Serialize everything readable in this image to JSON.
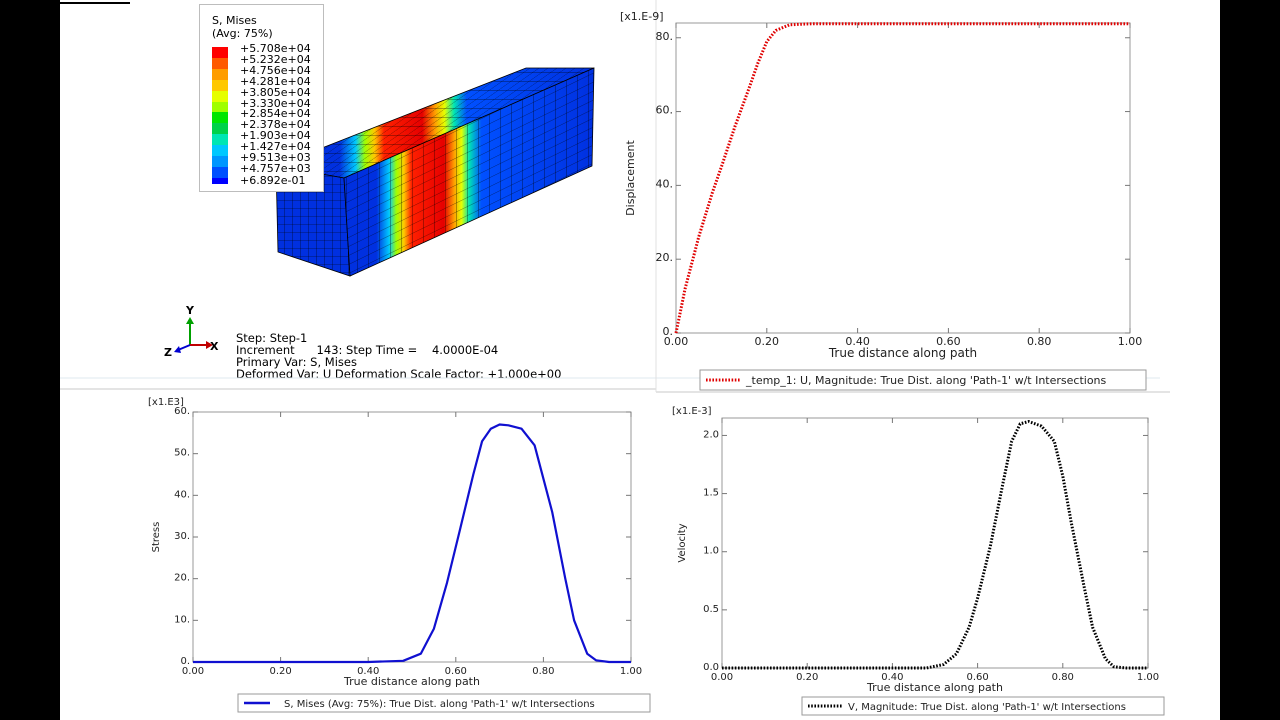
{
  "model": {
    "legend": {
      "title": "S, Mises",
      "subtitle": "(Avg: 75%)",
      "levels": [
        "+5.708e+04",
        "+5.232e+04",
        "+4.756e+04",
        "+4.281e+04",
        "+3.805e+04",
        "+3.330e+04",
        "+2.854e+04",
        "+2.378e+04",
        "+1.903e+04",
        "+1.427e+04",
        "+9.513e+03",
        "+4.757e+03",
        "+6.892e-01"
      ],
      "colors": [
        "#ff0000",
        "#ff5a00",
        "#ff9d00",
        "#ffc800",
        "#e6ff00",
        "#a0ff00",
        "#00e600",
        "#00d24a",
        "#00e6b4",
        "#00c8ff",
        "#0096ff",
        "#0050ff",
        "#0000ff"
      ]
    },
    "triad": {
      "y": "Y",
      "x": "X",
      "z": "Z"
    },
    "info": {
      "line1": "Step: Step-1",
      "line2": "Increment      143: Step Time =    4.0000E-04",
      "line3": "Primary Var: S, Mises",
      "line4": "Deformed Var: U   Deformation Scale Factor: +1.000e+00"
    }
  },
  "chart_data": [
    {
      "name": "displacement",
      "type": "line",
      "scale_label": "[x1.E-9]",
      "xlabel": "True distance along path",
      "ylabel": "Displacement",
      "xlim": [
        0,
        1.0
      ],
      "ylim": [
        0,
        84
      ],
      "xticks": [
        0,
        0.2,
        0.4,
        0.6,
        0.8,
        1.0
      ],
      "xtick_labels": [
        "0.00",
        "0.20",
        "0.40",
        "0.60",
        "0.80",
        "1.00"
      ],
      "yticks": [
        0,
        20,
        40,
        60,
        80
      ],
      "ytick_labels": [
        "0.",
        "20.",
        "40.",
        "60.",
        "80."
      ],
      "series": [
        {
          "name": "_temp_1: U, Magnitude: True Dist. along 'Path-1' w/t Intersections",
          "color": "#e00000",
          "style": "dotted",
          "x": [
            0,
            0.02,
            0.05,
            0.08,
            0.1,
            0.13,
            0.16,
            0.18,
            0.2,
            0.22,
            0.25,
            0.3,
            0.4,
            0.6,
            0.8,
            1.0
          ],
          "y": [
            0,
            12,
            26,
            38,
            45,
            56,
            66,
            73,
            79,
            82,
            83.5,
            83.8,
            83.8,
            83.8,
            83.8,
            83.8
          ]
        }
      ]
    },
    {
      "name": "stress",
      "type": "line",
      "scale_label": "[x1.E3]",
      "xlabel": "True distance along path",
      "ylabel": "Stress",
      "xlim": [
        0,
        1.0
      ],
      "ylim": [
        0,
        60
      ],
      "xticks": [
        0,
        0.2,
        0.4,
        0.6,
        0.8,
        1.0
      ],
      "xtick_labels": [
        "0.00",
        "0.20",
        "0.40",
        "0.60",
        "0.80",
        "1.00"
      ],
      "yticks": [
        0,
        10,
        20,
        30,
        40,
        50,
        60
      ],
      "ytick_labels": [
        "0.",
        "10.",
        "20.",
        "30.",
        "40.",
        "50.",
        "60."
      ],
      "series": [
        {
          "name": "S, Mises (Avg: 75%): True Dist. along 'Path-1' w/t Intersections",
          "color": "#1010d0",
          "style": "solid",
          "x": [
            0,
            0.4,
            0.48,
            0.52,
            0.55,
            0.58,
            0.61,
            0.64,
            0.66,
            0.68,
            0.7,
            0.72,
            0.75,
            0.78,
            0.8,
            0.82,
            0.85,
            0.87,
            0.9,
            0.92,
            0.95,
            1.0
          ],
          "y": [
            0,
            0,
            0.3,
            2,
            8,
            19,
            32,
            45,
            53,
            56,
            57,
            56.8,
            56,
            52,
            44,
            36,
            20,
            10,
            2,
            0.4,
            0,
            0
          ]
        }
      ]
    },
    {
      "name": "velocity",
      "type": "line",
      "scale_label": "[x1.E-3]",
      "xlabel": "True distance along path",
      "ylabel": "Velocity",
      "xlim": [
        0,
        1.0
      ],
      "ylim": [
        0,
        2.15
      ],
      "xticks": [
        0,
        0.2,
        0.4,
        0.6,
        0.8,
        1.0
      ],
      "xtick_labels": [
        "0.00",
        "0.20",
        "0.40",
        "0.60",
        "0.80",
        "1.00"
      ],
      "yticks": [
        0,
        0.5,
        1.0,
        1.5,
        2.0
      ],
      "ytick_labels": [
        "0.0",
        "0.5",
        "1.0",
        "1.5",
        "2.0"
      ],
      "series": [
        {
          "name": "V, Magnitude: True Dist. along 'Path-1' w/t Intersections",
          "color": "#000000",
          "style": "dotted",
          "x": [
            0,
            0.48,
            0.52,
            0.55,
            0.58,
            0.6,
            0.63,
            0.66,
            0.68,
            0.7,
            0.72,
            0.75,
            0.78,
            0.8,
            0.82,
            0.85,
            0.87,
            0.9,
            0.92,
            0.95,
            1.0
          ],
          "y": [
            0,
            0,
            0.03,
            0.12,
            0.35,
            0.6,
            1.05,
            1.6,
            1.95,
            2.1,
            2.12,
            2.08,
            1.95,
            1.65,
            1.25,
            0.7,
            0.35,
            0.08,
            0.01,
            0,
            0
          ]
        }
      ]
    }
  ]
}
